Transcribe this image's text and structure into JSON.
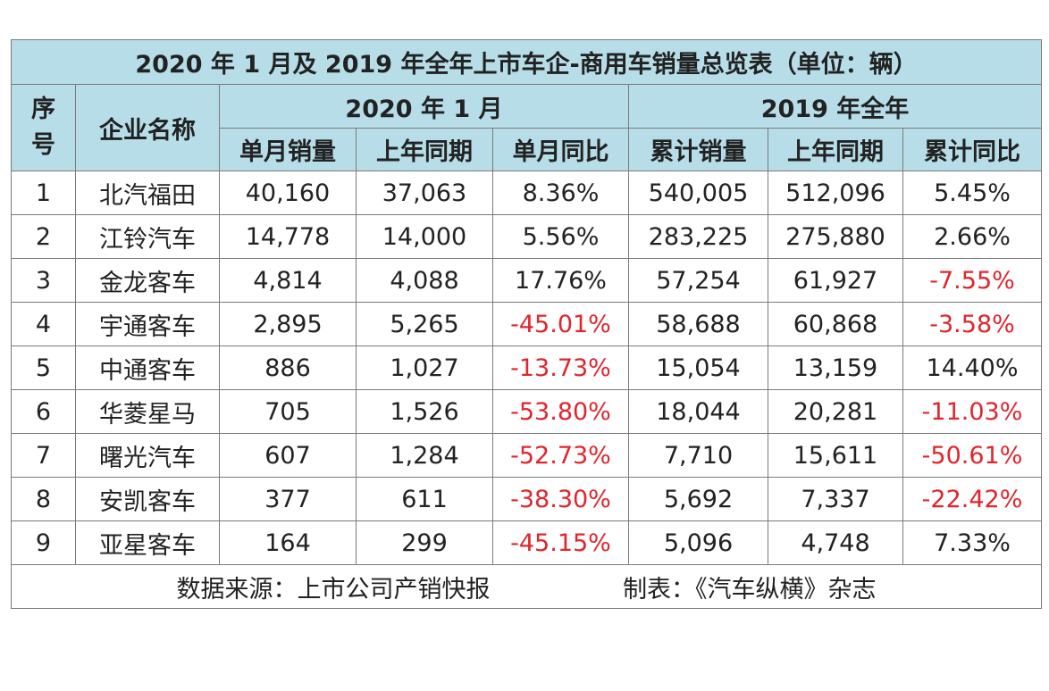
{
  "table": {
    "title": "2020 年 1 月及 2019 年全年上市车企-商用车销量总览表（单位：辆）",
    "headers": {
      "index_top": "序",
      "index_bottom": "号",
      "company": "企业名称",
      "group_2020": "2020 年 1 月",
      "group_2019": "2019 年全年",
      "jan_sales": "单月销量",
      "jan_prev": "上年同期",
      "jan_yoy": "单月同比",
      "cum_sales": "累计销量",
      "cum_prev": "上年同期",
      "cum_yoy": "累计同比"
    },
    "rows": [
      {
        "idx": "1",
        "company": "北汽福田",
        "jan_sales": "40,160",
        "jan_prev": "37,063",
        "jan_yoy": "8.36%",
        "cum_sales": "540,005",
        "cum_prev": "512,096",
        "cum_yoy": "5.45%"
      },
      {
        "idx": "2",
        "company": "江铃汽车",
        "jan_sales": "14,778",
        "jan_prev": "14,000",
        "jan_yoy": "5.56%",
        "cum_sales": "283,225",
        "cum_prev": "275,880",
        "cum_yoy": "2.66%"
      },
      {
        "idx": "3",
        "company": "金龙客车",
        "jan_sales": "4,814",
        "jan_prev": "4,088",
        "jan_yoy": "17.76%",
        "cum_sales": "57,254",
        "cum_prev": "61,927",
        "cum_yoy": "-7.55%"
      },
      {
        "idx": "4",
        "company": "宇通客车",
        "jan_sales": "2,895",
        "jan_prev": "5,265",
        "jan_yoy": "-45.01%",
        "cum_sales": "58,688",
        "cum_prev": "60,868",
        "cum_yoy": "-3.58%"
      },
      {
        "idx": "5",
        "company": "中通客车",
        "jan_sales": "886",
        "jan_prev": "1,027",
        "jan_yoy": "-13.73%",
        "cum_sales": "15,054",
        "cum_prev": "13,159",
        "cum_yoy": "14.40%"
      },
      {
        "idx": "6",
        "company": "华菱星马",
        "jan_sales": "705",
        "jan_prev": "1,526",
        "jan_yoy": "-53.80%",
        "cum_sales": "18,044",
        "cum_prev": "20,281",
        "cum_yoy": "-11.03%"
      },
      {
        "idx": "7",
        "company": "曙光汽车",
        "jan_sales": "607",
        "jan_prev": "1,284",
        "jan_yoy": "-52.73%",
        "cum_sales": "7,710",
        "cum_prev": "15,611",
        "cum_yoy": "-50.61%"
      },
      {
        "idx": "8",
        "company": "安凯客车",
        "jan_sales": "377",
        "jan_prev": "611",
        "jan_yoy": "-38.30%",
        "cum_sales": "5,692",
        "cum_prev": "7,337",
        "cum_yoy": "-22.42%"
      },
      {
        "idx": "9",
        "company": "亚星客车",
        "jan_sales": "164",
        "jan_prev": "299",
        "jan_yoy": "-45.15%",
        "cum_sales": "5,096",
        "cum_prev": "4,748",
        "cum_yoy": "7.33%"
      }
    ],
    "footer": {
      "source": "数据来源：上市公司产销快报",
      "maker": "制表：《汽车纵横》杂志"
    }
  },
  "colors": {
    "header_bg": "#b7dee8",
    "negative": "#e3242b",
    "border": "#7a7a7a"
  }
}
